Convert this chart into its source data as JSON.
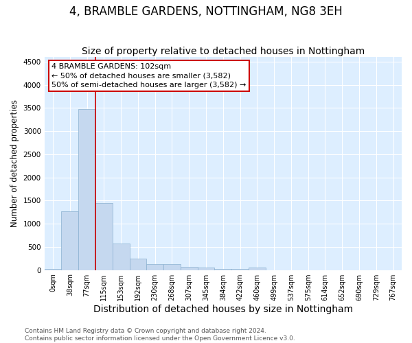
{
  "title": "4, BRAMBLE GARDENS, NOTTINGHAM, NG8 3EH",
  "subtitle": "Size of property relative to detached houses in Nottingham",
  "xlabel": "Distribution of detached houses by size in Nottingham",
  "ylabel": "Number of detached properties",
  "bin_labels": [
    "0sqm",
    "38sqm",
    "77sqm",
    "115sqm",
    "153sqm",
    "192sqm",
    "230sqm",
    "268sqm",
    "307sqm",
    "345sqm",
    "384sqm",
    "422sqm",
    "460sqm",
    "499sqm",
    "537sqm",
    "575sqm",
    "614sqm",
    "652sqm",
    "690sqm",
    "729sqm",
    "767sqm"
  ],
  "bar_heights": [
    30,
    1270,
    3480,
    1450,
    570,
    250,
    130,
    120,
    70,
    50,
    30,
    20,
    50,
    0,
    0,
    0,
    0,
    0,
    0,
    0,
    0
  ],
  "bar_color": "#c5d8ef",
  "bar_edge_color": "#8ab0d0",
  "ylim": [
    0,
    4600
  ],
  "yticks": [
    0,
    500,
    1000,
    1500,
    2000,
    2500,
    3000,
    3500,
    4000,
    4500
  ],
  "vline_x": 2.5,
  "vline_color": "#cc0000",
  "annotation_text": "4 BRAMBLE GARDENS: 102sqm\n← 50% of detached houses are smaller (3,582)\n50% of semi-detached houses are larger (3,582) →",
  "annotation_box_color": "#ffffff",
  "annotation_box_edgecolor": "#cc0000",
  "footer_line1": "Contains HM Land Registry data © Crown copyright and database right 2024.",
  "footer_line2": "Contains public sector information licensed under the Open Government Licence v3.0.",
  "plot_bg_color": "#ddeeff",
  "fig_bg_color": "#ffffff",
  "grid_color": "#ffffff",
  "title_fontsize": 12,
  "subtitle_fontsize": 10,
  "xlabel_fontsize": 10,
  "ylabel_fontsize": 8.5,
  "tick_fontsize": 7,
  "annotation_fontsize": 8,
  "footer_fontsize": 6.5
}
